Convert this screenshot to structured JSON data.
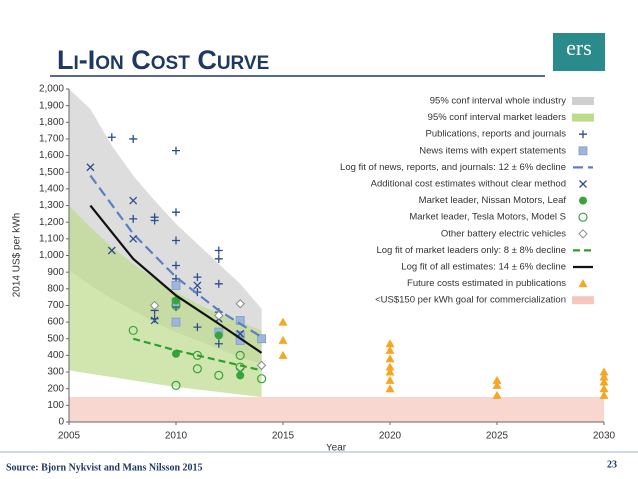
{
  "slide": {
    "title": "Li-Ion Cost Curve",
    "logo": "ers",
    "source": "Source: Bjorn Nykvist and Mans Nilsson 2015",
    "page_number": "23"
  },
  "chart_data": {
    "type": "scatter",
    "x_label": "Year",
    "y_label": "2014 US$ per kWh",
    "xlim": [
      2005,
      2030
    ],
    "xticks": [
      2005,
      2010,
      2015,
      2020,
      2025,
      2030
    ],
    "ylim": [
      0,
      2000
    ],
    "yticks": [
      0,
      100,
      200,
      300,
      400,
      500,
      600,
      700,
      800,
      900,
      {
        "value": 1000,
        "label": "1,000"
      },
      {
        "value": 1100,
        "label": "1,100"
      },
      {
        "value": 1200,
        "label": "1,200"
      },
      {
        "value": 1300,
        "label": "1,300"
      },
      {
        "value": 1400,
        "label": "1,400"
      },
      {
        "value": 1500,
        "label": "1,500"
      },
      {
        "value": 1600,
        "label": "1,600"
      },
      {
        "value": 1700,
        "label": "1,700"
      },
      {
        "value": 1800,
        "label": "1,800"
      },
      {
        "value": 1900,
        "label": "1,900"
      },
      {
        "value": 2000,
        "label": "2,000"
      }
    ],
    "legend": "top-right",
    "series": [
      {
        "name": "95% conf interval whole industry",
        "kind": "band",
        "color": "#cfcfcf",
        "x": [
          2005,
          2006,
          2007,
          2008,
          2009,
          2010,
          2011,
          2012,
          2013,
          2014
        ],
        "values": [
          2000,
          1880,
          1660,
          1480,
          1330,
          1190,
          1070,
          950,
          830,
          680
        ],
        "lower": [
          913,
          820,
          740,
          670,
          600,
          540,
          490,
          440,
          390,
          350
        ]
      },
      {
        "name": "95% conf interval market leaders",
        "kind": "band",
        "color": "#bcdc8c",
        "x": [
          2005,
          2006,
          2007,
          2008,
          2009,
          2010,
          2011,
          2012,
          2013,
          2014
        ],
        "values": [
          1300,
          1170,
          1050,
          950,
          860,
          780,
          710,
          650,
          600,
          550
        ],
        "lower": [
          310,
          290,
          270,
          250,
          230,
          210,
          195,
          180,
          165,
          150
        ]
      },
      {
        "name": "Publications, reports and journals",
        "kind": "plus",
        "color": "#2e4d8f",
        "x": [
          2007,
          2008,
          2010,
          2009,
          2009,
          2010,
          2010,
          2010,
          2010,
          2010,
          2009,
          2009,
          2011,
          2011,
          2011,
          2012,
          2012,
          2012,
          2012,
          2012,
          2012,
          2008
        ],
        "values": [
          1710,
          1700,
          1630,
          1230,
          1210,
          1260,
          1090,
          940,
          860,
          690,
          670,
          620,
          870,
          780,
          570,
          1030,
          980,
          830,
          660,
          520,
          470,
          1220
        ]
      },
      {
        "name": "News items with expert statements",
        "kind": "square",
        "color": "#9fb6dc",
        "x": [
          2010,
          2010,
          2010,
          2013,
          2013,
          2013,
          2014,
          2012
        ],
        "values": [
          820,
          600,
          720,
          610,
          520,
          490,
          500,
          540
        ]
      },
      {
        "name": "Log fit of news, reports, and journals: 12 ± 6% decline",
        "kind": "line",
        "dash": "10 5",
        "color": "#5b7fc0",
        "x": [
          2006,
          2008,
          2010,
          2012,
          2014
        ],
        "values": [
          1480,
          1130,
          870,
          670,
          510
        ]
      },
      {
        "name": "Additional cost estimates without clear method",
        "kind": "cross",
        "color": "#2e4d8f",
        "x": [
          2006,
          2008,
          2008,
          2007,
          2009,
          2011,
          2012,
          2013,
          2013
        ],
        "values": [
          1530,
          1330,
          1100,
          1030,
          610,
          820,
          620,
          530,
          300
        ]
      },
      {
        "name": "Market leader, Nissan Motors, Leaf",
        "kind": "dot",
        "color": "#3aa23a",
        "x": [
          2010,
          2010,
          2012,
          2013
        ],
        "values": [
          730,
          410,
          520,
          280
        ]
      },
      {
        "name": "Market leader, Tesla Motors, Model S",
        "kind": "ring",
        "color": "#3aa23a",
        "x": [
          2008,
          2010,
          2010,
          2011,
          2011,
          2012,
          2013,
          2013,
          2014
        ],
        "values": [
          550,
          220,
          700,
          400,
          320,
          280,
          400,
          330,
          260
        ]
      },
      {
        "name": "Other battery electric vehicles",
        "kind": "diamond",
        "color": "#8a8a8a",
        "x": [
          2009,
          2012,
          2013,
          2014
        ],
        "values": [
          700,
          640,
          710,
          340
        ]
      },
      {
        "name": "Log fit of market leaders only: 8 ± 8% decline",
        "kind": "line",
        "dash": "7 4",
        "color": "#2ca02c",
        "x": [
          2008,
          2010,
          2012,
          2014
        ],
        "values": [
          500,
          430,
          370,
          310
        ]
      },
      {
        "name": "Log fit of all estimates: 14 ± 6% decline",
        "kind": "line",
        "dash": "",
        "color": "#111111",
        "x": [
          2006,
          2008,
          2010,
          2012,
          2014
        ],
        "values": [
          1300,
          980,
          760,
          590,
          415
        ]
      },
      {
        "name": "Future costs estimated in publications",
        "kind": "triangle",
        "color": "#f5a623",
        "x": [
          2015,
          2015,
          2015,
          2020,
          2020,
          2020,
          2020,
          2020,
          2020,
          2020,
          2025,
          2025,
          2025,
          2030,
          2030,
          2030,
          2030,
          2030
        ],
        "values": [
          600,
          490,
          400,
          470,
          430,
          380,
          330,
          300,
          250,
          200,
          250,
          220,
          160,
          300,
          270,
          240,
          200,
          160
        ]
      },
      {
        "name": "<US$150 per kWh goal for commercialization",
        "kind": "band",
        "color": "#f7c6bd",
        "x": [
          2005,
          2030
        ],
        "values": [
          150,
          150
        ],
        "lower": [
          0,
          0
        ]
      }
    ]
  }
}
